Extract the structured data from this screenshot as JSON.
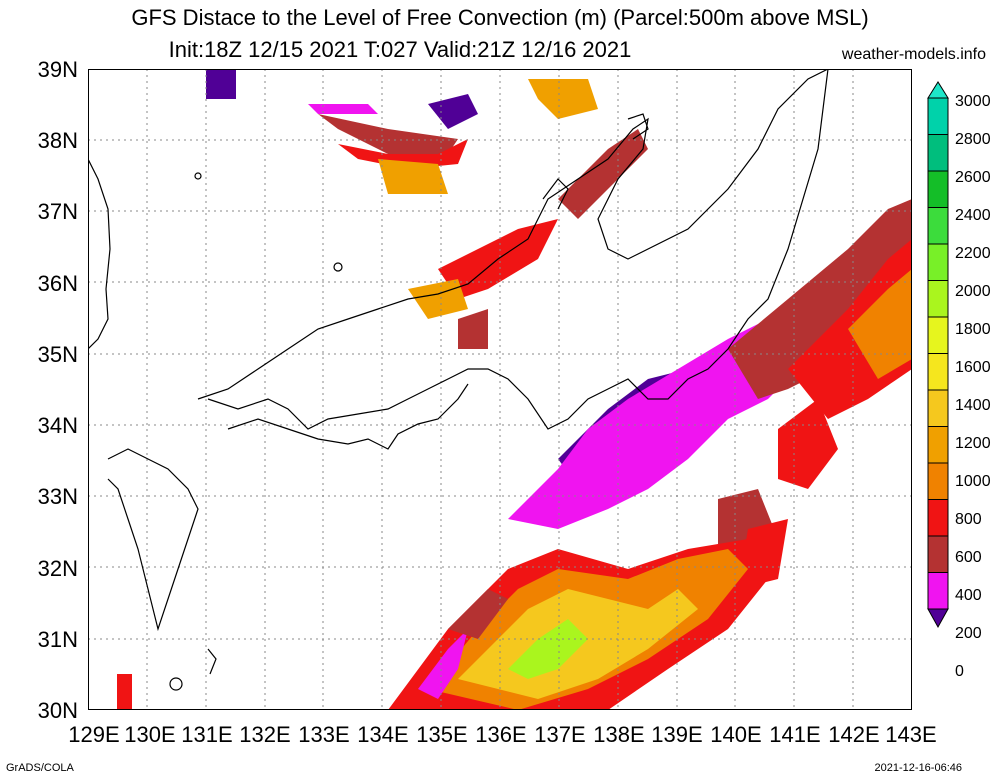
{
  "title_line1": "GFS Distace to the Level of Free Convection (m) (Parcel:500m above MSL)",
  "title_line2": "Init:18Z 12/15 2021 T:027 Valid:21Z 12/16 2021",
  "site": "weather-models.info",
  "lat_labels": [
    "39N",
    "38N",
    "37N",
    "36N",
    "35N",
    "34N",
    "33N",
    "32N",
    "31N",
    "30N"
  ],
  "lon_labels": [
    "129E",
    "130E",
    "131E",
    "132E",
    "133E",
    "134E",
    "135E",
    "136E",
    "137E",
    "138E",
    "139E",
    "140E",
    "141E",
    "142E",
    "143E"
  ],
  "colorbar": {
    "labels": [
      "3000",
      "2800",
      "2600",
      "2400",
      "2200",
      "2000",
      "1800",
      "1600",
      "1400",
      "1200",
      "1000",
      "800",
      "600",
      "400",
      "200",
      "0"
    ],
    "colors": [
      "#1ee6c8",
      "#00d2aa",
      "#00be7d",
      "#14be28",
      "#3cdc3c",
      "#78f028",
      "#aaf51e",
      "#e6f51e",
      "#f5e61e",
      "#f5c81e",
      "#f0a000",
      "#f08200",
      "#f01414",
      "#b43232",
      "#f014f0",
      "#500096"
    ]
  },
  "footer_left": "GrADS/COLA",
  "footer_right": "2021-12-16-06:46"
}
